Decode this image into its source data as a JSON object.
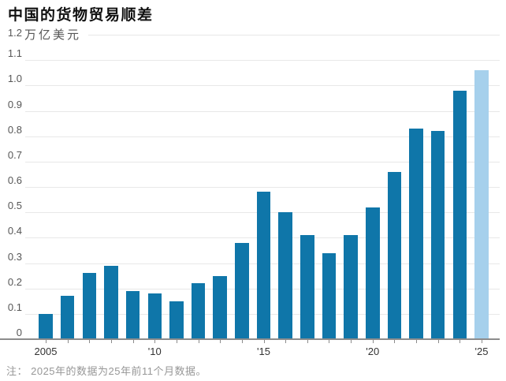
{
  "header": {
    "title": "中国的货物贸易顺差"
  },
  "chart_data": {
    "type": "bar",
    "title": "中国的货物贸易顺差",
    "unit_top_tick": "1.2",
    "unit_label": "万亿美元",
    "x": [
      2005,
      2006,
      2007,
      2008,
      2009,
      2010,
      2011,
      2012,
      2013,
      2014,
      2015,
      2016,
      2017,
      2018,
      2019,
      2020,
      2021,
      2022,
      2023,
      2024,
      2025
    ],
    "values": [
      0.1,
      0.17,
      0.26,
      0.29,
      0.19,
      0.18,
      0.15,
      0.22,
      0.25,
      0.38,
      0.58,
      0.5,
      0.41,
      0.34,
      0.41,
      0.52,
      0.66,
      0.83,
      0.82,
      0.98,
      1.06
    ],
    "highlight_year": 2025,
    "x_ticks": [
      {
        "index": 0,
        "label": "2005"
      },
      {
        "index": 5,
        "label": "'10"
      },
      {
        "index": 10,
        "label": "'15"
      },
      {
        "index": 15,
        "label": "'20"
      },
      {
        "index": 20,
        "label": "'25"
      }
    ],
    "ylim": [
      0,
      1.2
    ],
    "y_tick_step": 0.1,
    "grid": true,
    "legend": null,
    "colors": {
      "bar": "#0f76a9",
      "bar_highlight": "#a6d0ec",
      "gridline": "#e8e8e8",
      "axis": "#8c8c8c",
      "tick_label": "#565656",
      "x_tick_label": "#333333"
    }
  },
  "footnote": {
    "text": "注： 2025年的数据为25年前11个月数据。"
  }
}
